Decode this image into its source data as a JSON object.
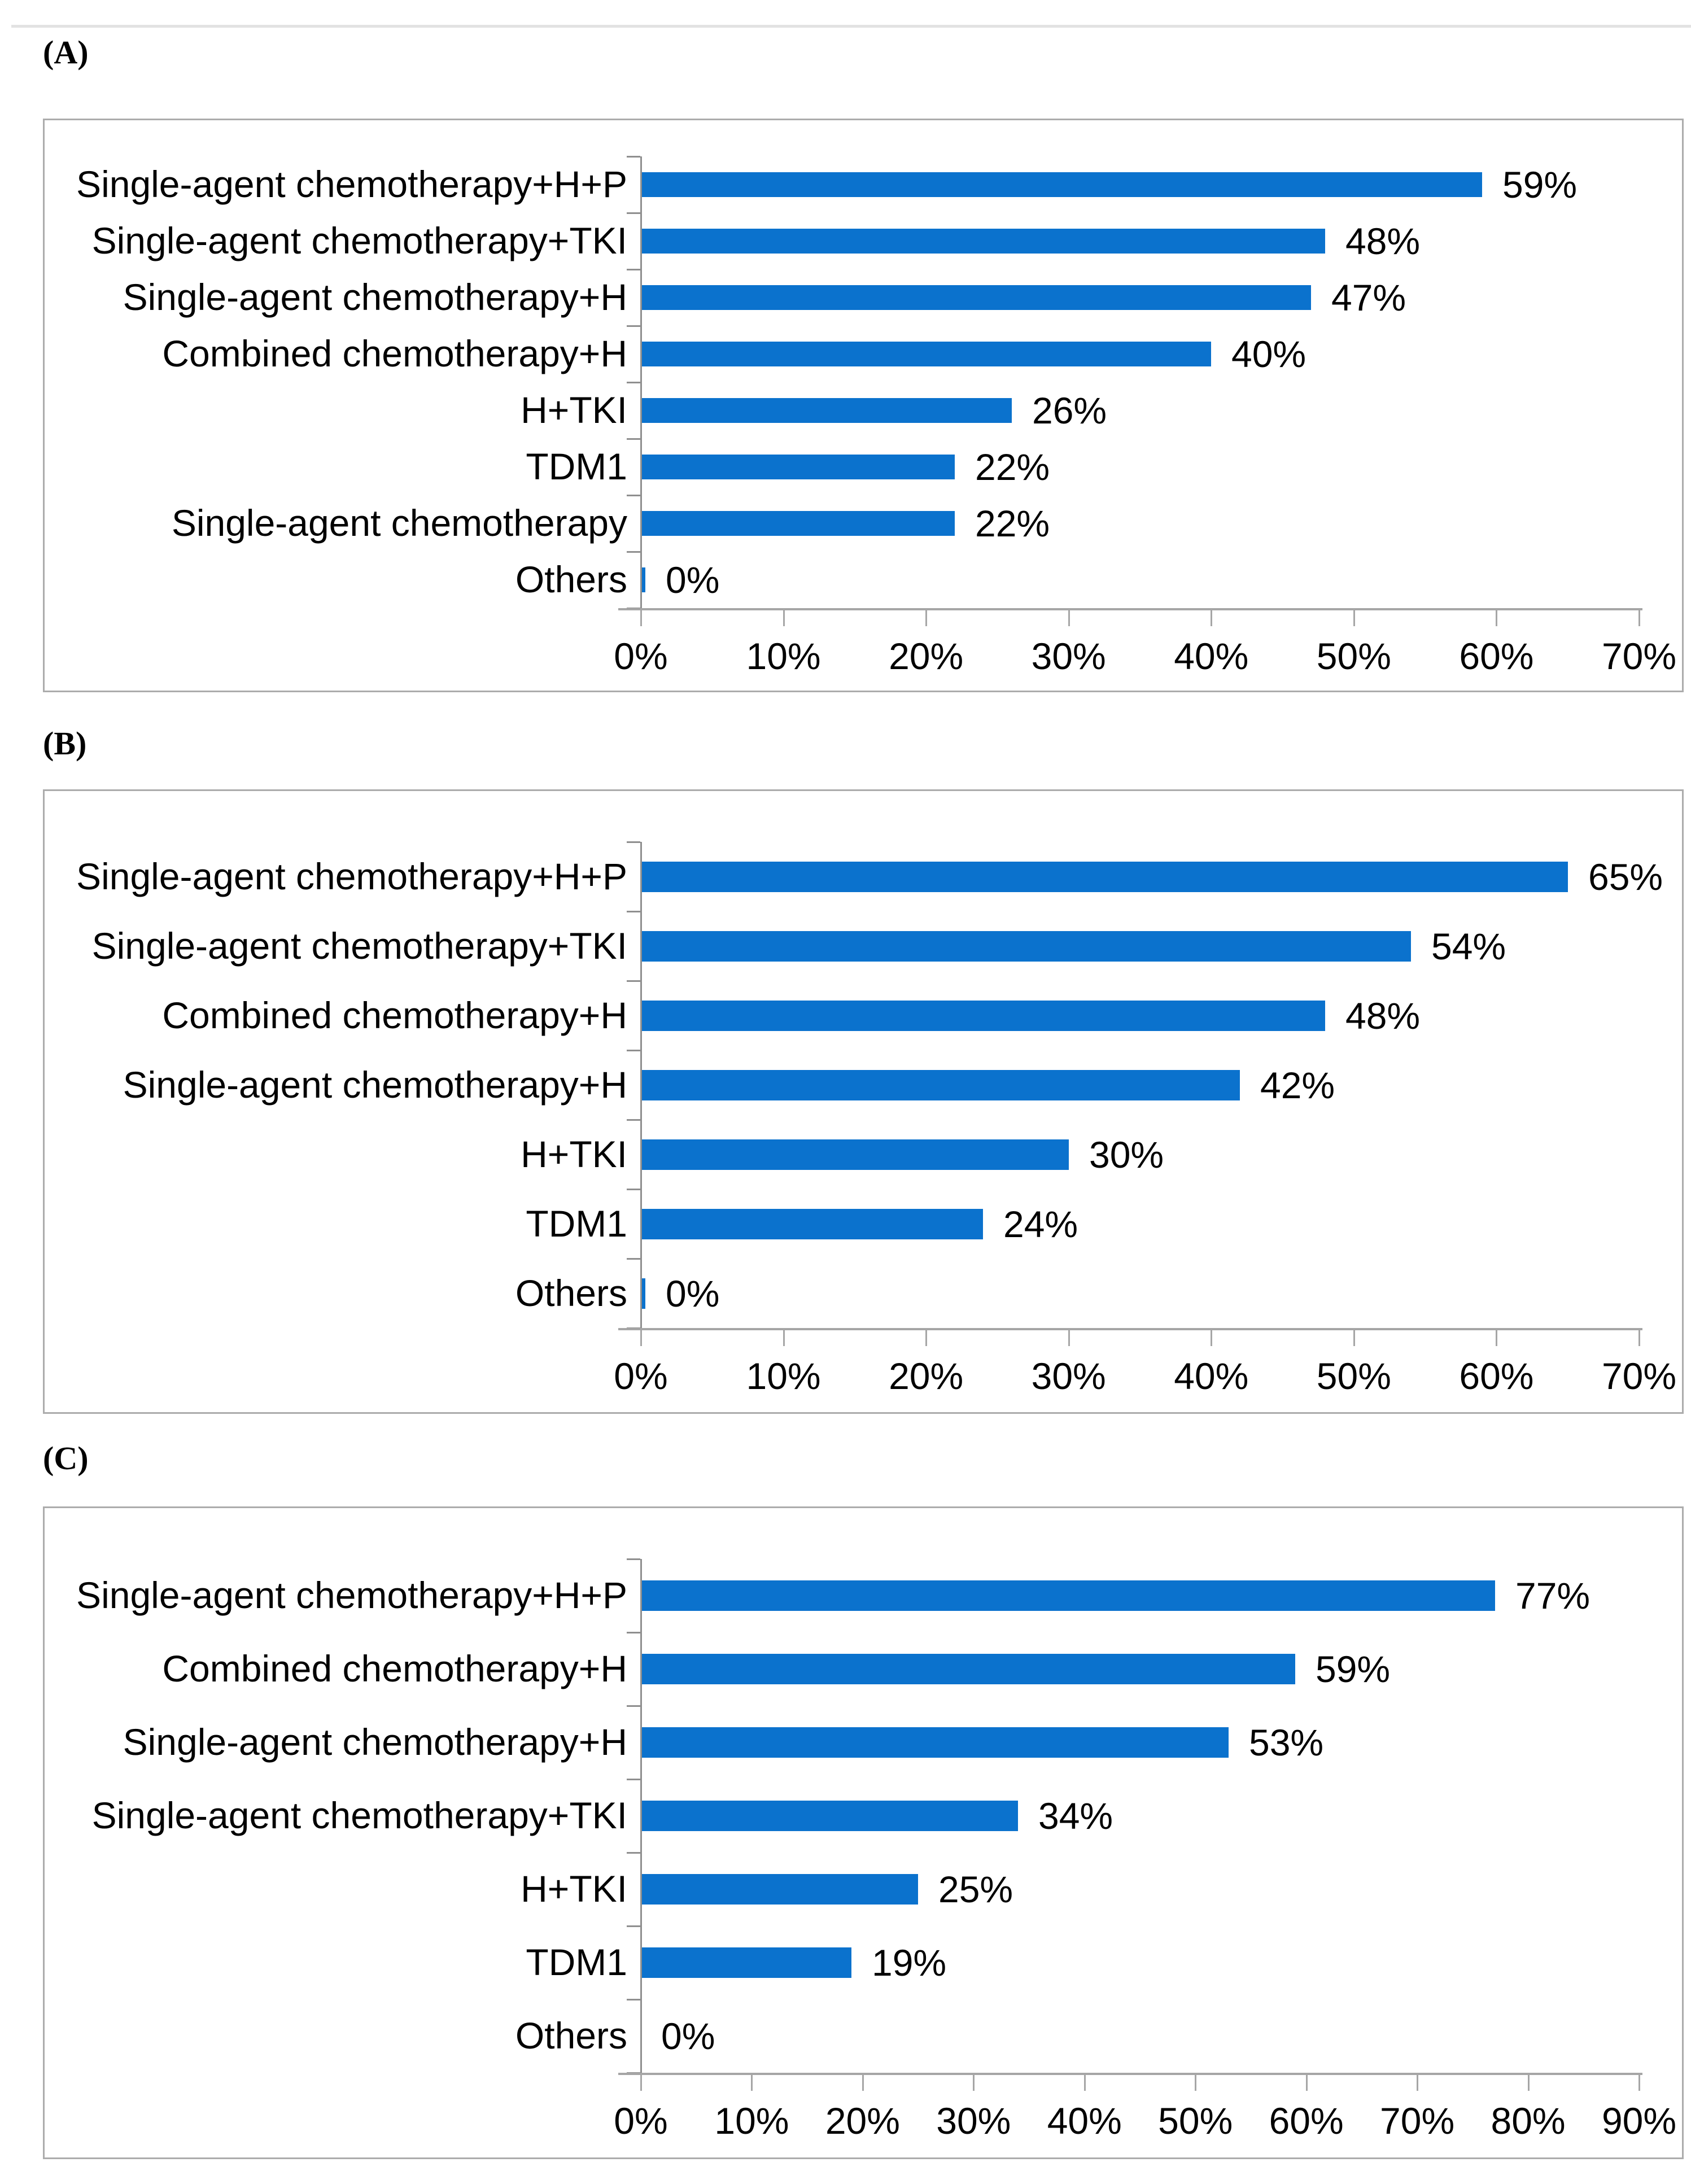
{
  "figure": {
    "bar_color": "#0b72cd",
    "x_axis_color": "#a6a6a6",
    "y_axis_color": "#8f8f8f",
    "panel_border_color": "#acacac",
    "text_color": "#000000",
    "background": "#ffffff"
  },
  "chart_data": [
    {
      "type": "bar",
      "orientation": "horizontal",
      "panel": "(A)",
      "title": "",
      "xlabel": "",
      "ylabel": "",
      "categories": [
        "Single-agent chemotherapy+H+P",
        "Single-agent chemotherapy+TKI",
        "Single-agent chemotherapy+H",
        "Combined chemotherapy+H",
        "H+TKI",
        "TDM1",
        "Single-agent chemotherapy",
        "Others"
      ],
      "values": [
        59,
        48,
        47,
        40,
        26,
        22,
        22,
        0
      ],
      "value_labels": [
        "59%",
        "48%",
        "47%",
        "40%",
        "26%",
        "22%",
        "22%",
        "0%"
      ],
      "xlim": [
        0,
        70
      ],
      "x_tick_step": 10,
      "x_tick_labels": [
        "0%",
        "10%",
        "20%",
        "30%",
        "40%",
        "50%",
        "60%",
        "70%"
      ],
      "grid": false,
      "legend": null,
      "zero_bar_sliver": true
    },
    {
      "type": "bar",
      "orientation": "horizontal",
      "panel": "(B)",
      "title": "",
      "xlabel": "",
      "ylabel": "",
      "categories": [
        "Single-agent chemotherapy+H+P",
        "Single-agent chemotherapy+TKI",
        "Combined chemotherapy+H",
        "Single-agent chemotherapy+H",
        "H+TKI",
        "TDM1",
        "Others"
      ],
      "values": [
        65,
        54,
        48,
        42,
        30,
        24,
        0
      ],
      "value_labels": [
        "65%",
        "54%",
        "48%",
        "42%",
        "30%",
        "24%",
        "0%"
      ],
      "xlim": [
        0,
        70
      ],
      "x_tick_step": 10,
      "x_tick_labels": [
        "0%",
        "10%",
        "20%",
        "30%",
        "40%",
        "50%",
        "60%",
        "70%"
      ],
      "grid": false,
      "legend": null,
      "zero_bar_sliver": true
    },
    {
      "type": "bar",
      "orientation": "horizontal",
      "panel": "(C)",
      "title": "",
      "xlabel": "",
      "ylabel": "",
      "categories": [
        "Single-agent chemotherapy+H+P",
        "Combined chemotherapy+H",
        "Single-agent chemotherapy+H",
        "Single-agent chemotherapy+TKI",
        "H+TKI",
        "TDM1",
        "Others"
      ],
      "values": [
        77,
        59,
        53,
        34,
        25,
        19,
        0
      ],
      "value_labels": [
        "77%",
        "59%",
        "53%",
        "34%",
        "25%",
        "19%",
        "0%"
      ],
      "xlim": [
        0,
        90
      ],
      "x_tick_step": 10,
      "x_tick_labels": [
        "0%",
        "10%",
        "20%",
        "30%",
        "40%",
        "50%",
        "60%",
        "70%",
        "80%",
        "90%"
      ],
      "grid": false,
      "legend": null,
      "zero_bar_sliver": false
    }
  ]
}
